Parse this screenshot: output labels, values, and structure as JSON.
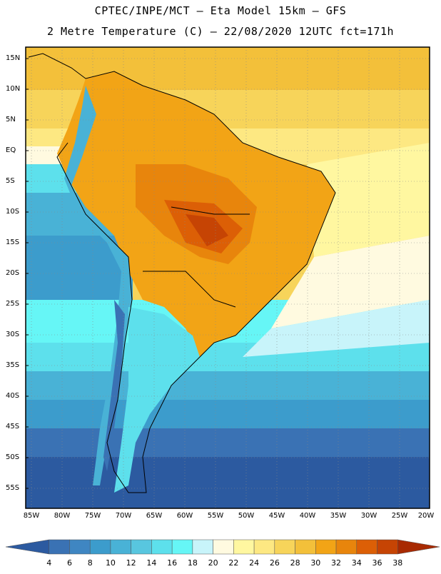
{
  "header": {
    "line1": "CPTEC/INPE/MCT –  Eta Model 15km – GFS",
    "line2": "2 Metre Temperature (C) – 22/08/2020 12UTC fct=171h"
  },
  "map": {
    "lat_labels": [
      "15N",
      "10N",
      "5N",
      "EQ",
      "5S",
      "10S",
      "15S",
      "20S",
      "25S",
      "30S",
      "35S",
      "40S",
      "45S",
      "50S",
      "55S"
    ],
    "lon_labels": [
      "85W",
      "80W",
      "75W",
      "70W",
      "65W",
      "60W",
      "55W",
      "50W",
      "45W",
      "40W",
      "35W",
      "30W",
      "25W",
      "20W"
    ],
    "lat_range": [
      18,
      -58
    ],
    "lon_range": [
      -86,
      -20
    ]
  },
  "colorbar": {
    "labels": [
      "4",
      "6",
      "8",
      "10",
      "12",
      "14",
      "16",
      "18",
      "20",
      "22",
      "24",
      "26",
      "28",
      "30",
      "32",
      "34",
      "36",
      "38"
    ],
    "colors": [
      "#2c5aa0",
      "#3a72b4",
      "#3f86c2",
      "#3c9ccc",
      "#49b2d6",
      "#58c6df",
      "#5de0ec",
      "#66f6f6",
      "#c8f4fa",
      "#fffae0",
      "#fff7a0",
      "#fde882",
      "#f7d45a",
      "#f3c03a",
      "#f2a416",
      "#e8850c",
      "#dc5f06",
      "#c64404",
      "#a82a02"
    ]
  }
}
